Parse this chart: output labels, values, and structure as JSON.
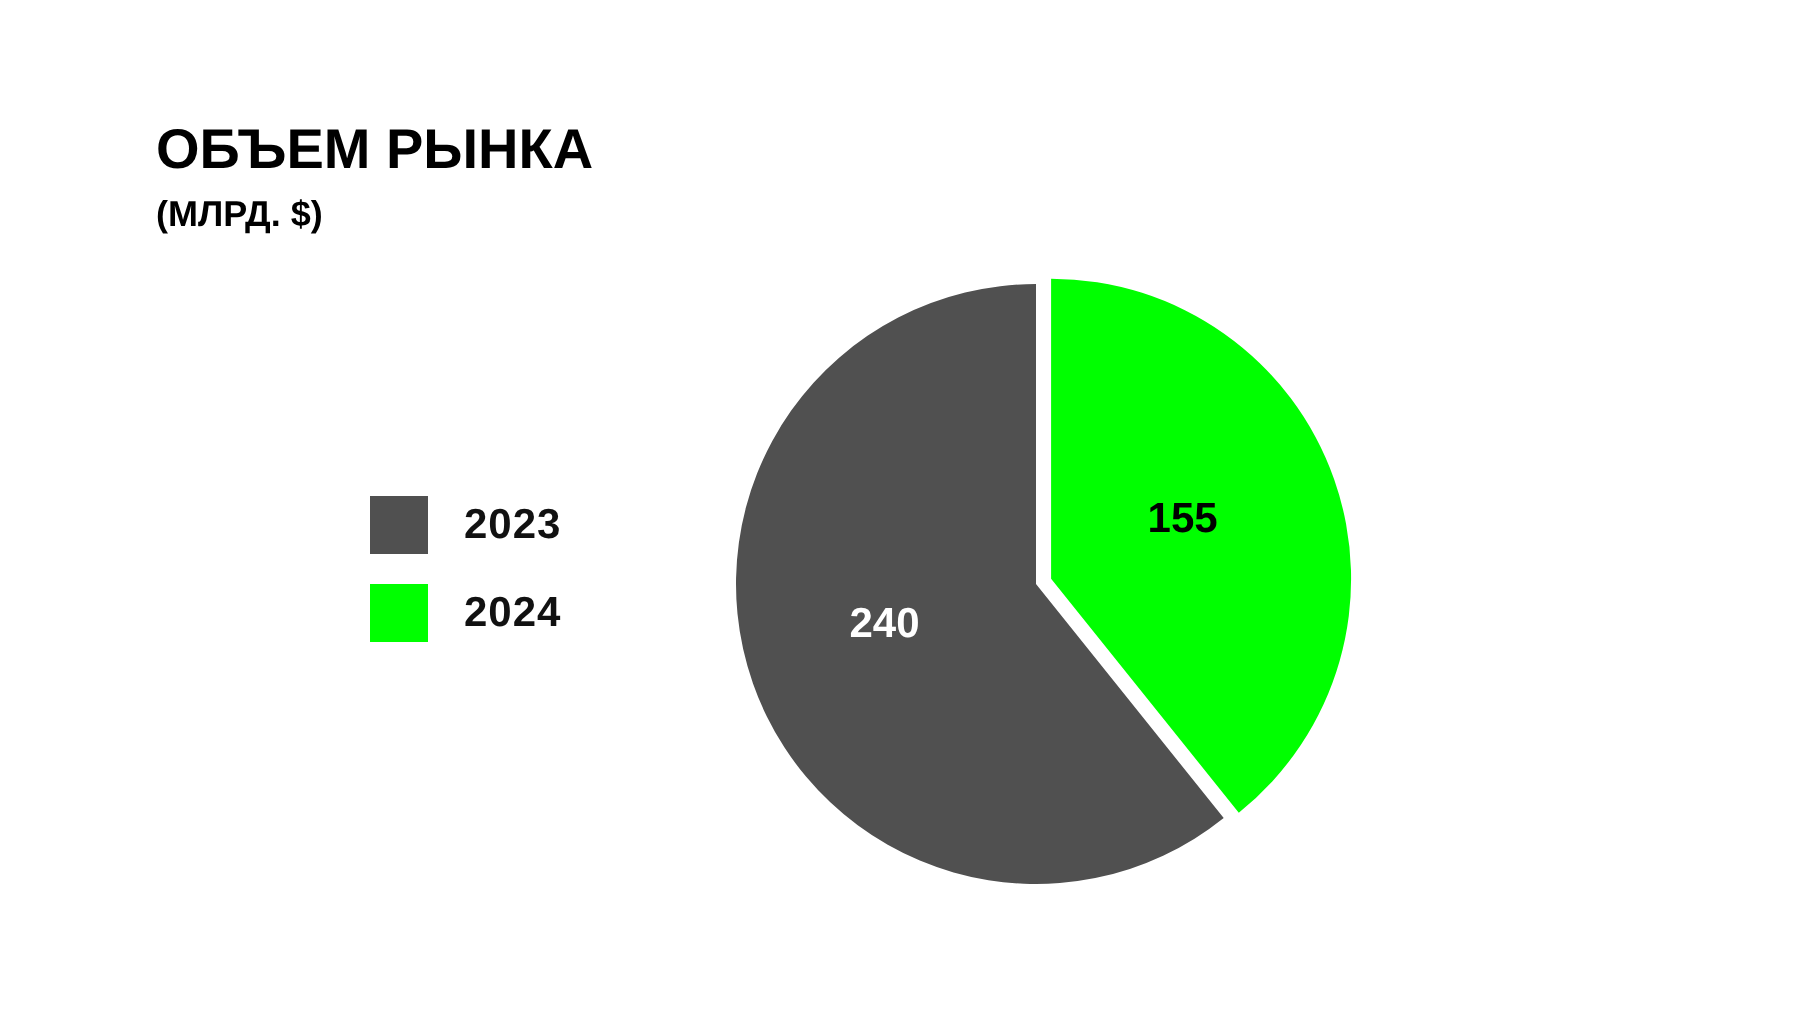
{
  "chart_data": {
    "type": "pie",
    "title": "ОБЪЕМ РЫНКА",
    "subtitle": "(МЛРД. $)",
    "categories": [
      "2023",
      "2024"
    ],
    "values": [
      240,
      155
    ],
    "colors": [
      "#505050",
      "#00ff00"
    ],
    "data_labels": true,
    "legend": "left"
  }
}
